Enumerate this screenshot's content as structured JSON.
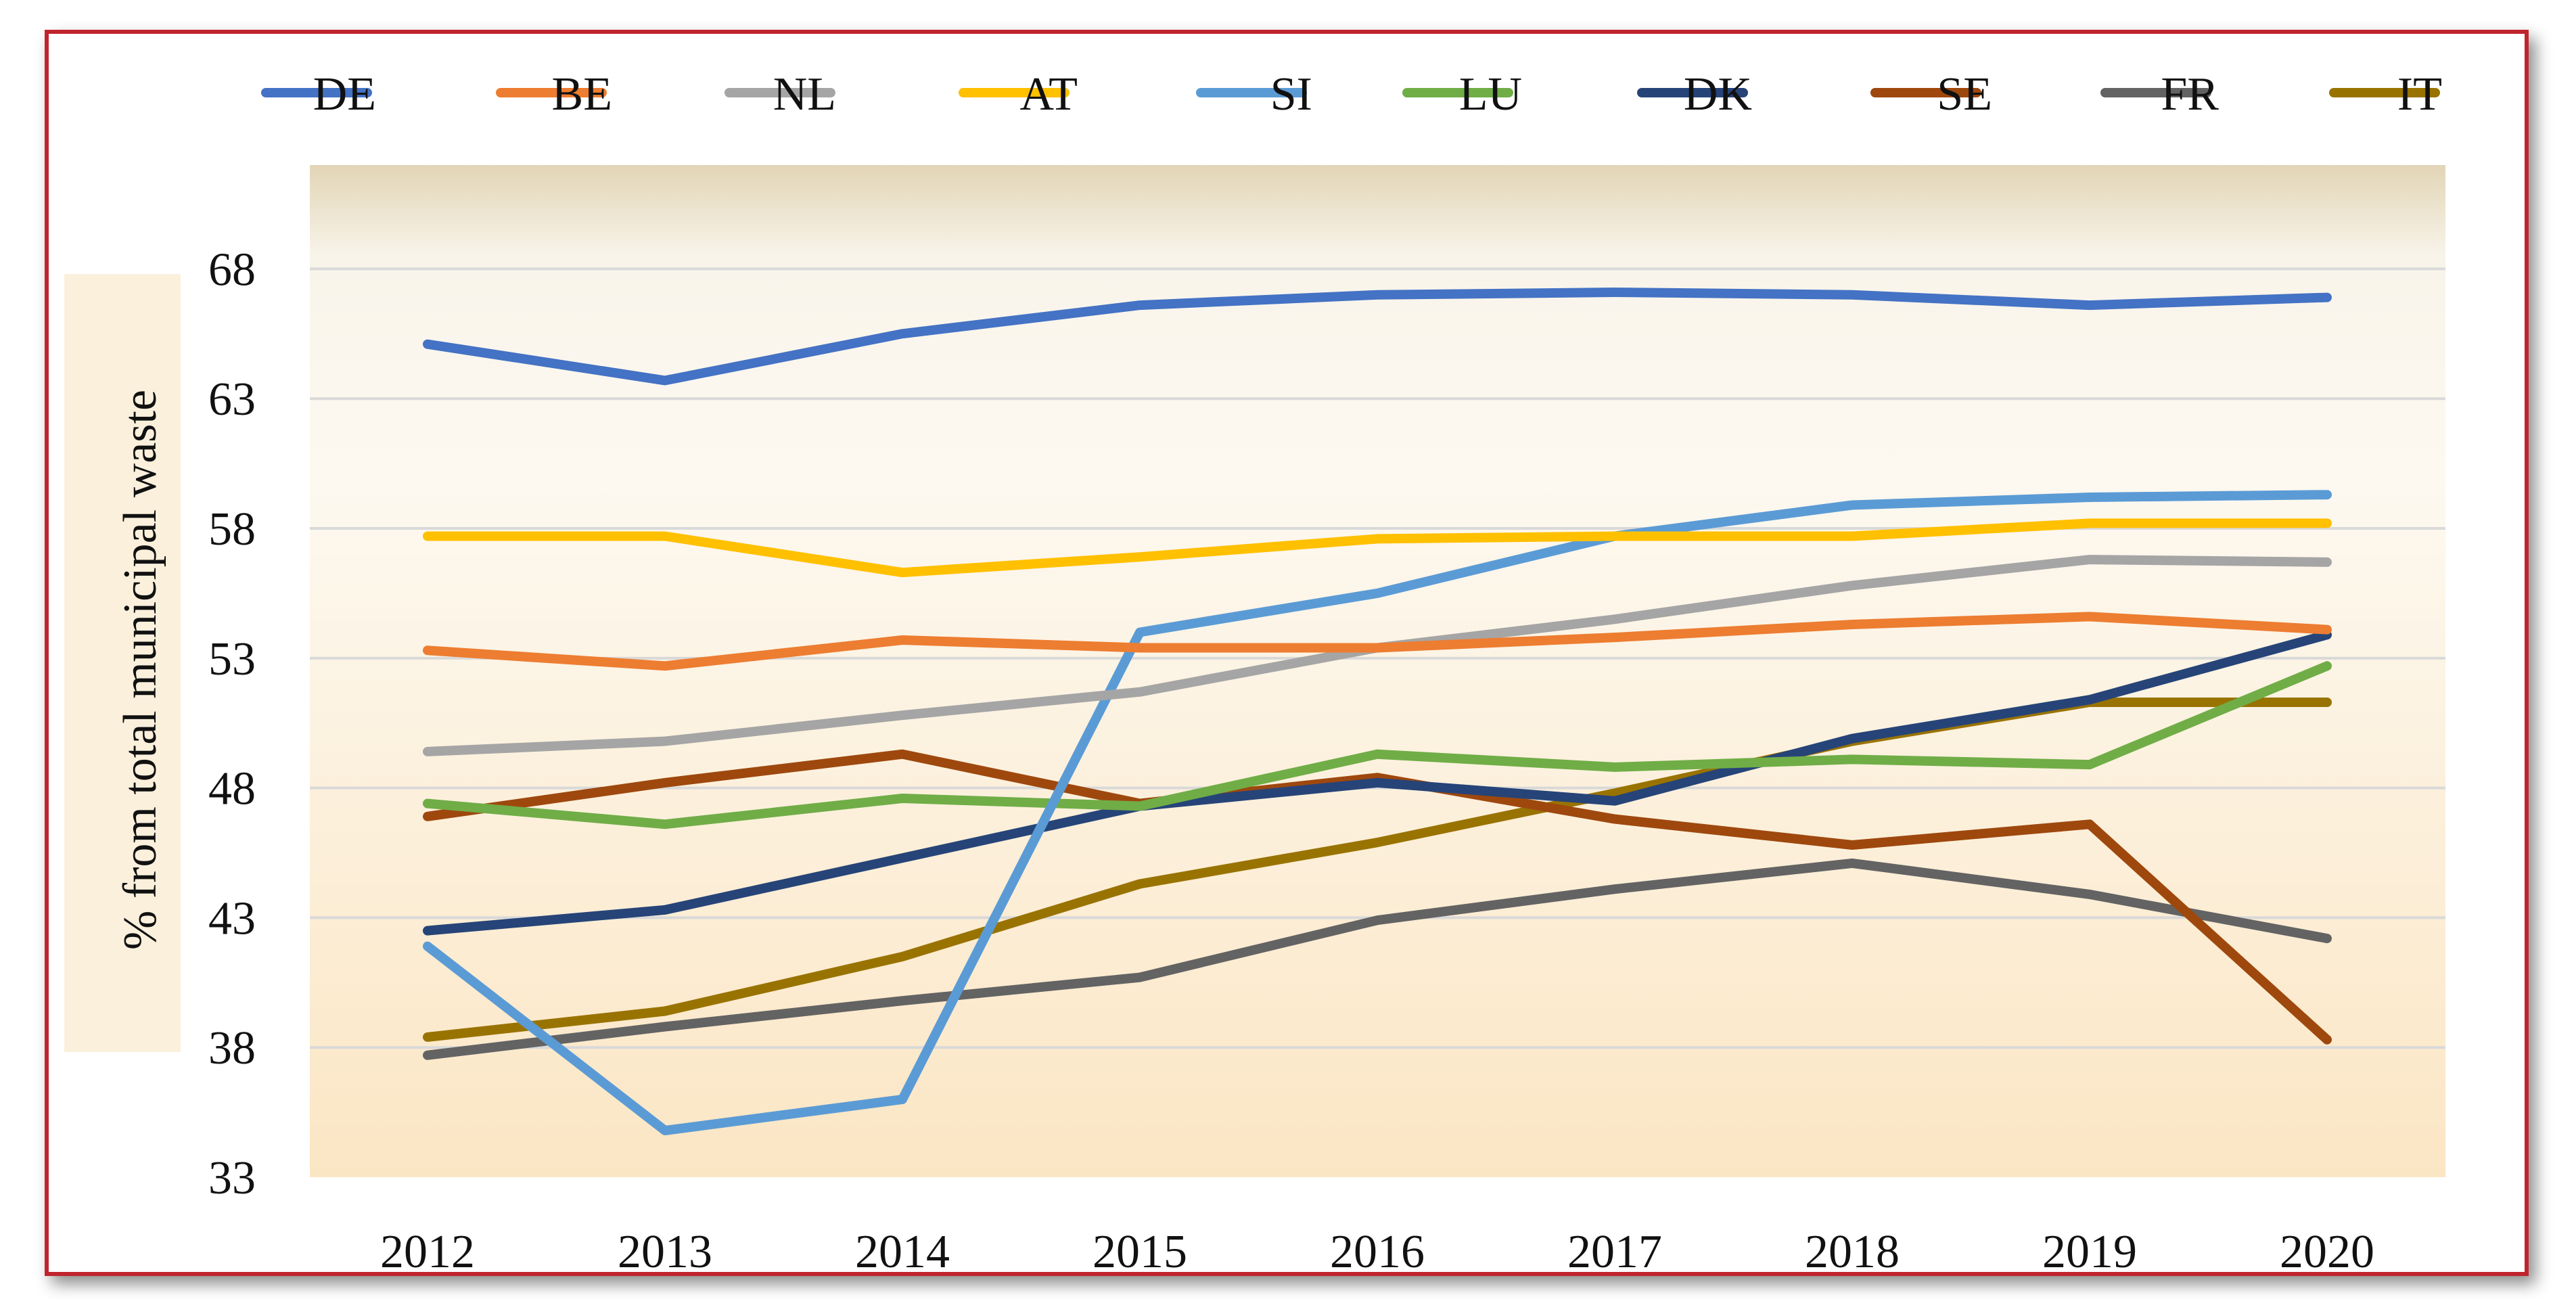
{
  "chart_data": {
    "type": "line",
    "title": "",
    "xlabel": "",
    "ylabel": "% from total municipal waste",
    "ylim": [
      33,
      72
    ],
    "yticks": [
      33,
      38,
      43,
      48,
      53,
      58,
      63,
      68
    ],
    "grid": true,
    "legend_position": "top",
    "categories": [
      "2012",
      "2013",
      "2014",
      "2015",
      "2016",
      "2017",
      "2018",
      "2019",
      "2020"
    ],
    "series": [
      {
        "name": "DE",
        "color": "#4472C4",
        "values": [
          65.1,
          63.7,
          65.5,
          66.6,
          67.0,
          67.1,
          67.0,
          66.6,
          66.9
        ]
      },
      {
        "name": "BE",
        "color": "#ED7D31",
        "values": [
          53.3,
          52.7,
          53.7,
          53.4,
          53.4,
          53.8,
          54.3,
          54.6,
          54.1
        ]
      },
      {
        "name": "NL",
        "color": "#A5A5A5",
        "values": [
          49.4,
          49.8,
          50.8,
          51.7,
          53.4,
          54.5,
          55.8,
          56.8,
          56.7
        ]
      },
      {
        "name": "AT",
        "color": "#FFC000",
        "values": [
          57.7,
          57.7,
          56.3,
          56.9,
          57.6,
          57.7,
          57.7,
          58.2,
          58.2
        ]
      },
      {
        "name": "SI",
        "color": "#5B9BD5",
        "values": [
          41.9,
          34.8,
          36.0,
          54.0,
          55.5,
          57.7,
          58.9,
          59.2,
          59.3
        ]
      },
      {
        "name": "LU",
        "color": "#70AD47",
        "values": [
          47.4,
          46.6,
          47.6,
          47.3,
          49.3,
          48.8,
          49.1,
          48.9,
          52.7
        ]
      },
      {
        "name": "DK",
        "color": "#264478",
        "values": [
          42.5,
          43.3,
          45.3,
          47.3,
          48.2,
          47.5,
          49.9,
          51.4,
          53.9
        ]
      },
      {
        "name": "SE",
        "color": "#9E480E",
        "values": [
          46.9,
          48.2,
          49.3,
          47.4,
          48.4,
          46.8,
          45.8,
          46.6,
          38.3
        ]
      },
      {
        "name": "FR",
        "color": "#636363",
        "values": [
          37.7,
          38.8,
          39.8,
          40.7,
          42.9,
          44.1,
          45.1,
          43.9,
          42.2
        ]
      },
      {
        "name": "IT",
        "color": "#997300",
        "values": [
          38.4,
          39.4,
          41.5,
          44.3,
          45.9,
          47.8,
          49.8,
          51.3,
          51.3
        ]
      }
    ]
  }
}
